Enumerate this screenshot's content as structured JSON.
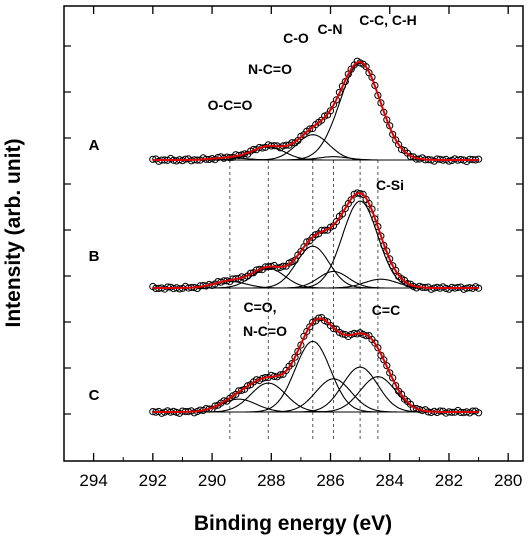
{
  "chart_data": {
    "type": "line",
    "xlabel": "Binding energy (eV)",
    "ylabel": "Intensity (arb. unit)",
    "xlim": [
      295,
      279.5
    ],
    "x_reversed": true,
    "x_ticks": [
      294,
      292,
      290,
      288,
      286,
      284,
      282,
      280
    ],
    "reference_lines": [
      289.4,
      288.1,
      286.6,
      285.9,
      285.0,
      284.4
    ],
    "colors": {
      "fit": "#e00000",
      "data": "#000000",
      "component": "#000000",
      "guide": "#555555"
    },
    "panels": [
      {
        "label": "A",
        "range": [
          292,
          281
        ],
        "peak_height": 110,
        "components": [
          {
            "center": 289.4,
            "amplitude": 0.02,
            "fwhm": 1.3
          },
          {
            "center": 288.1,
            "amplitude": 0.12,
            "fwhm": 1.3
          },
          {
            "center": 286.6,
            "amplitude": 0.23,
            "fwhm": 1.3
          },
          {
            "center": 285.9,
            "amplitude": 0.03,
            "fwhm": 1.2
          },
          {
            "center": 285.0,
            "amplitude": 0.88,
            "fwhm": 1.6
          }
        ],
        "peak_labels": [
          {
            "text": "O-C=O",
            "anchor_energy": 289.4
          },
          {
            "text": "N-C=O",
            "anchor_energy": 288.1
          },
          {
            "text": "C-O",
            "anchor_energy": 286.6
          },
          {
            "text": "C-N",
            "anchor_energy": 285.9
          },
          {
            "text": "C-C, C-H",
            "anchor_energy": 285.0
          }
        ]
      },
      {
        "label": "B",
        "range": [
          292,
          281
        ],
        "peak_height": 110,
        "components": [
          {
            "center": 289.4,
            "amplitude": 0.06,
            "fwhm": 1.3
          },
          {
            "center": 288.1,
            "amplitude": 0.18,
            "fwhm": 1.3
          },
          {
            "center": 286.6,
            "amplitude": 0.38,
            "fwhm": 1.3
          },
          {
            "center": 285.9,
            "amplitude": 0.15,
            "fwhm": 1.2
          },
          {
            "center": 285.0,
            "amplitude": 0.79,
            "fwhm": 1.4
          },
          {
            "center": 284.3,
            "amplitude": 0.08,
            "fwhm": 1.3
          }
        ],
        "peak_labels": [
          {
            "text": "C-Si",
            "anchor_energy": 284.3
          }
        ]
      },
      {
        "label": "C",
        "range": [
          292,
          281
        ],
        "peak_height": 107,
        "components": [
          {
            "center": 289.1,
            "amplitude": 0.12,
            "fwhm": 1.4
          },
          {
            "center": 288.1,
            "amplitude": 0.27,
            "fwhm": 1.4
          },
          {
            "center": 286.6,
            "amplitude": 0.66,
            "fwhm": 1.4
          },
          {
            "center": 285.9,
            "amplitude": 0.31,
            "fwhm": 1.4
          },
          {
            "center": 285.0,
            "amplitude": 0.42,
            "fwhm": 1.4
          },
          {
            "center": 284.4,
            "amplitude": 0.33,
            "fwhm": 1.4
          }
        ],
        "peak_labels": [
          {
            "text": "C=O,",
            "anchor_energy": 288.1
          },
          {
            "text": "N-C=O",
            "anchor_energy": 288.1
          },
          {
            "text": "C=C",
            "anchor_energy": 284.4
          }
        ]
      }
    ]
  }
}
